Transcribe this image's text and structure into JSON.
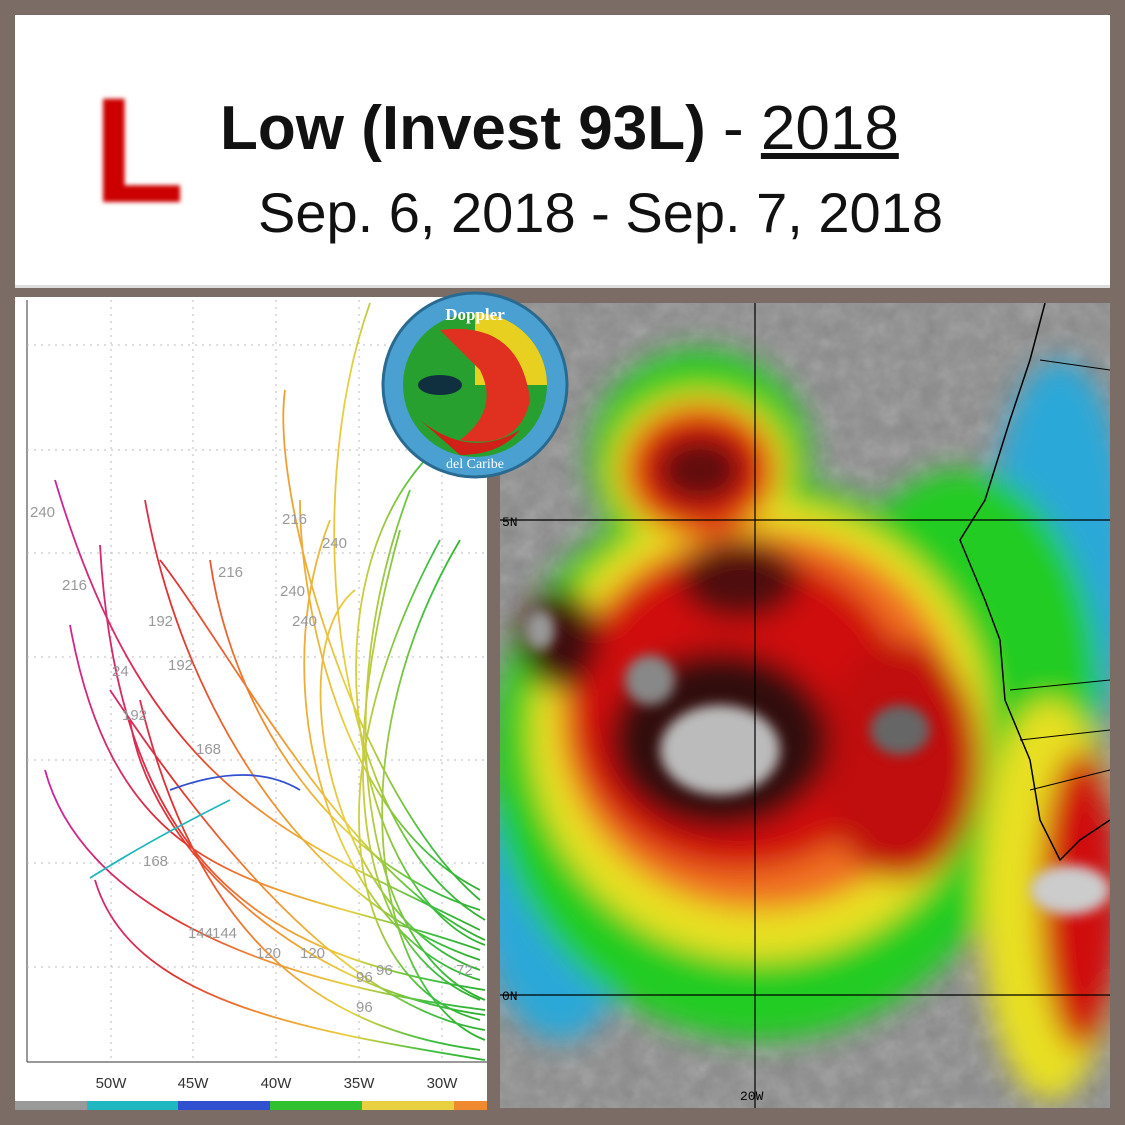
{
  "header": {
    "icon_letter": "L",
    "title": "Low (Invest 93L)",
    "separator": "-",
    "year": "2018",
    "dates": "Sep. 6, 2018 - Sep. 7, 2018"
  },
  "logo": {
    "top": "Doppler",
    "bottom": "del Caribe"
  },
  "track_map": {
    "x_axis_labels": [
      "50W",
      "45W",
      "40W",
      "35W",
      "30W"
    ],
    "hour_labels": [
      "240",
      "216",
      "192",
      "240",
      "216",
      "216",
      "240",
      "240",
      "24",
      "192",
      "168",
      "192",
      "168",
      "144",
      "144",
      "120",
      "120",
      "96",
      "96",
      "96",
      "72"
    ]
  },
  "satellite": {
    "labels": [
      "5N",
      "0N",
      "20W"
    ]
  }
}
